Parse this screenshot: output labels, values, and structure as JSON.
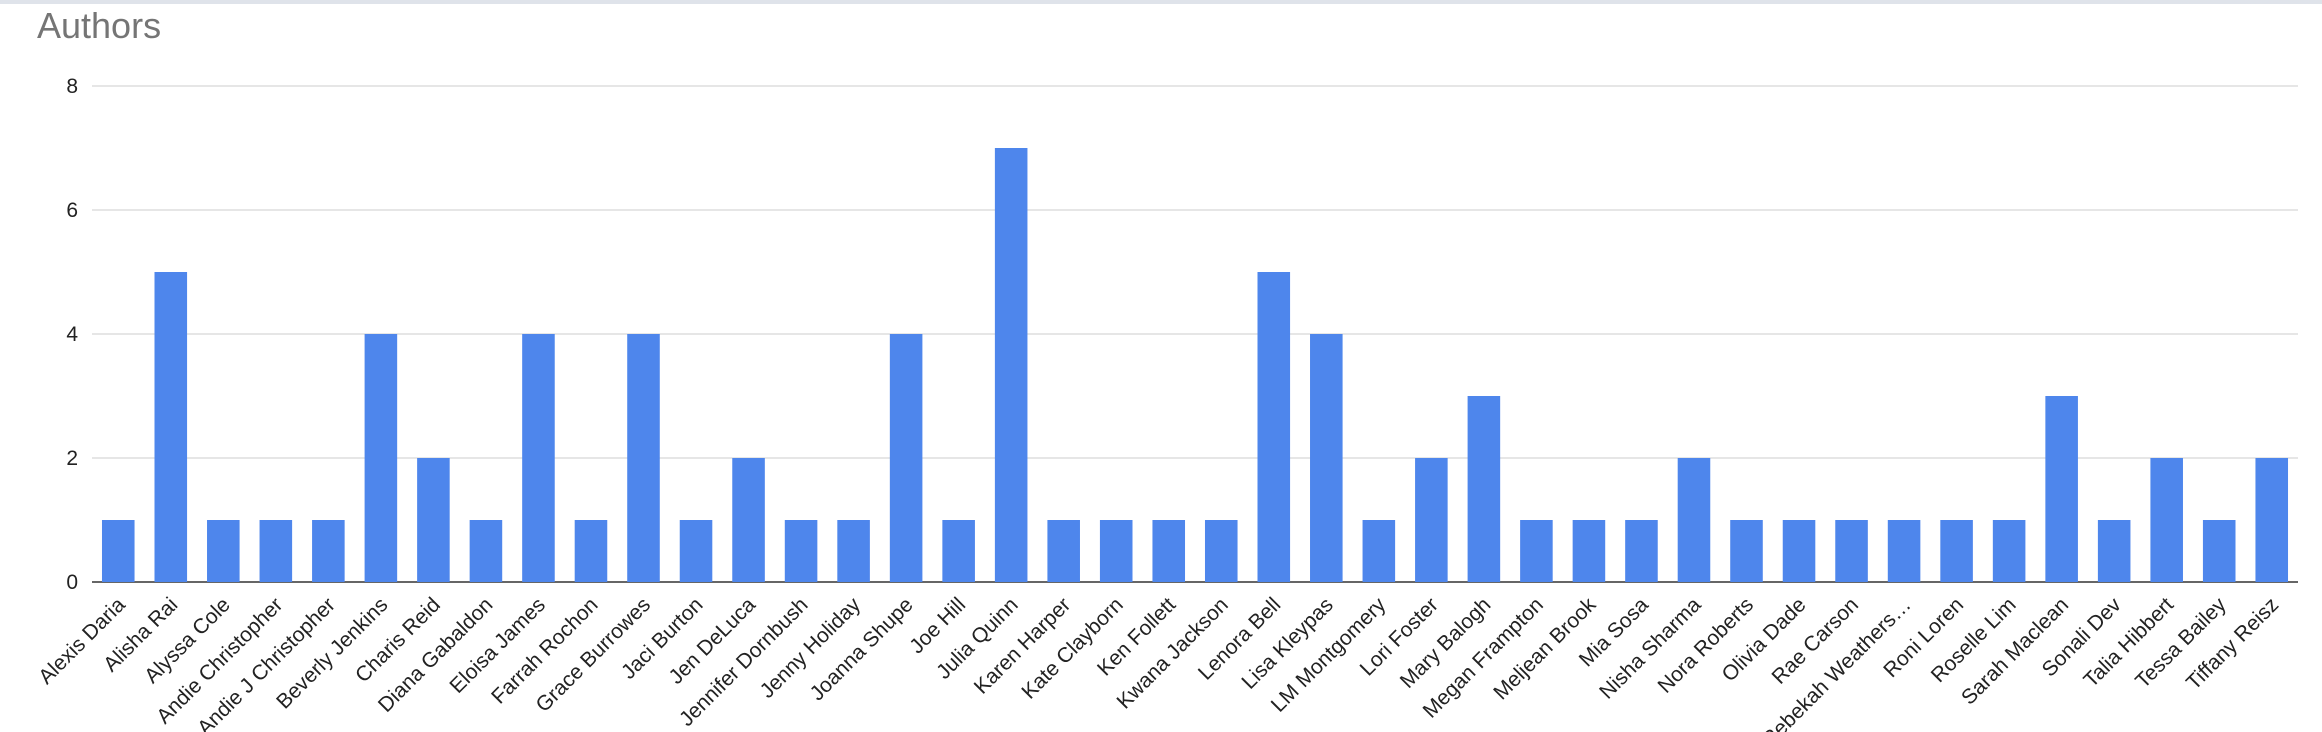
{
  "chart_data": {
    "type": "bar",
    "title": "Authors",
    "categories": [
      "Alexis Daria",
      "Alisha Rai",
      "Alyssa Cole",
      "Andie Christopher",
      "Andie J Christopher",
      "Beverly Jenkins",
      "Charis Reid",
      "Diana Gabaldon",
      "Eloisa James",
      "Farrah Rochon",
      "Grace Burrowes",
      "Jaci Burton",
      "Jen DeLuca",
      "Jennifer Dornbush",
      "Jenny Holiday",
      "Joanna Shupe",
      "Joe Hill",
      "Julia Quinn",
      "Karen Harper",
      "Kate Clayborn",
      "Ken Follett",
      "Kwana Jackson",
      "Lenora Bell",
      "Lisa Kleypas",
      "LM Montgomery",
      "Lori Foster",
      "Mary Balogh",
      "Megan Frampton",
      "Meljean Brook",
      "Mia Sosa",
      "Nisha Sharma",
      "Nora Roberts",
      "Olivia Dade",
      "Rae Carson",
      "Rebekah Weathers…",
      "Roni Loren",
      "Roselle Lim",
      "Sarah Maclean",
      "Sonali Dev",
      "Talia Hibbert",
      "Tessa Bailey",
      "Tiffany Reisz"
    ],
    "values": [
      1,
      5,
      1,
      1,
      1,
      4,
      2,
      1,
      4,
      1,
      4,
      1,
      2,
      1,
      1,
      4,
      1,
      7,
      1,
      1,
      1,
      1,
      5,
      4,
      1,
      2,
      3,
      1,
      1,
      1,
      2,
      1,
      1,
      1,
      1,
      1,
      1,
      3,
      1,
      2,
      1,
      2
    ],
    "color": "#4e86ec",
    "ylim": [
      0,
      8
    ],
    "yticks": [
      0,
      2,
      4,
      6,
      8
    ],
    "grid": true
  }
}
